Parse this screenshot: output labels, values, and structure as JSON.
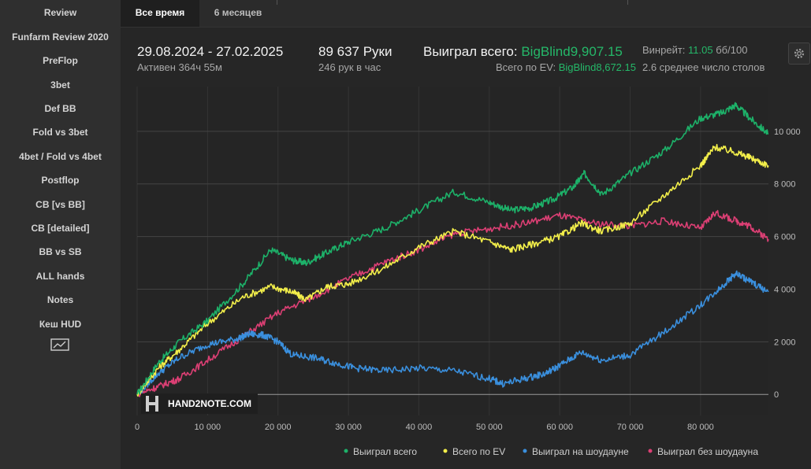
{
  "sidebar": {
    "items": [
      {
        "label": "Review"
      },
      {
        "label": "Funfarm Review 2020"
      },
      {
        "label": "PreFlop"
      },
      {
        "label": "3bet"
      },
      {
        "label": "Def BB"
      },
      {
        "label": "Fold vs 3bet"
      },
      {
        "label": "4bet / Fold vs 4bet"
      },
      {
        "label": "Postflop"
      },
      {
        "label": "CB [vs BB]"
      },
      {
        "label": "CB [detailed]"
      },
      {
        "label": "BB vs SB"
      },
      {
        "label": "ALL hands"
      },
      {
        "label": "Notes"
      },
      {
        "label": "Кеш HUD"
      }
    ],
    "chart_icon": "chart-line-icon"
  },
  "tabs": [
    {
      "label": "Все время",
      "active": true
    },
    {
      "label": "6 месяцев",
      "active": false
    }
  ],
  "stats": {
    "date_range": "29.08.2024 - 27.02.2025",
    "active_time": "Активен 364ч 55м",
    "hands": "89 637 Руки",
    "hands_per_hour": "246 рук в час",
    "won_label": "Выиграл всего:",
    "won_value": "BigBlind9,907.15",
    "ev_label": "Всего по EV:",
    "ev_value": "BigBlind8,672.15",
    "winrate_label": "Винрейт:",
    "winrate_value": "11.05",
    "winrate_unit": "бб/100",
    "avg_tables": "2.6 среднее число столов"
  },
  "watermark": "HAND2NOTE.COM",
  "colors": {
    "won": "#1db169",
    "ev": "#f2ee4a",
    "showdown": "#3a8fdd",
    "non_showdown": "#dc3f74",
    "accent_green": "#25b869"
  },
  "chart_data": {
    "type": "line",
    "x_ticks": [
      "0",
      "10 000",
      "20 000",
      "30 000",
      "40 000",
      "50 000",
      "60 000",
      "70 000",
      "80 000"
    ],
    "y_ticks": [
      "0",
      "2 000",
      "4 000",
      "6 000",
      "8 000",
      "10 000"
    ],
    "xlim": [
      0,
      89637
    ],
    "ylim": [
      -800,
      11700
    ],
    "grid": true,
    "legend_position": "bottom-right",
    "series": [
      {
        "name": "Выиграл всего",
        "color": "#1db169",
        "x": [
          0,
          3000,
          6000,
          10000,
          15000,
          19000,
          22000,
          24000,
          27000,
          30000,
          35000,
          40000,
          45000,
          50000,
          53000,
          56000,
          59000,
          62000,
          63500,
          66000,
          70000,
          75000,
          80000,
          83000,
          85000,
          87000,
          89637
        ],
        "y": [
          0,
          1200,
          2000,
          2800,
          4200,
          5500,
          5100,
          5000,
          5400,
          5800,
          6300,
          7000,
          7700,
          7300,
          7000,
          7100,
          7400,
          7900,
          8400,
          7600,
          8400,
          9300,
          10500,
          10700,
          11000,
          10500,
          9900
        ]
      },
      {
        "name": "Всего по EV",
        "color": "#f2ee4a",
        "x": [
          0,
          3000,
          6000,
          10000,
          15000,
          19000,
          22000,
          24000,
          27000,
          30000,
          35000,
          40000,
          45000,
          50000,
          53000,
          56000,
          60000,
          63000,
          66000,
          70000,
          75000,
          80000,
          82000,
          85000,
          87000,
          89637
        ],
        "y": [
          0,
          1000,
          1700,
          2700,
          3700,
          4100,
          3900,
          3600,
          4100,
          4200,
          4800,
          5600,
          6200,
          5800,
          5500,
          5700,
          6000,
          6500,
          6200,
          6500,
          7600,
          8700,
          9400,
          9200,
          9000,
          8700
        ]
      },
      {
        "name": "Выиграл на шоудауне",
        "color": "#3a8fdd",
        "x": [
          0,
          3000,
          6000,
          10000,
          14000,
          16000,
          18000,
          20000,
          22000,
          25000,
          28000,
          31000,
          35000,
          40000,
          45000,
          50000,
          52000,
          55000,
          58000,
          60000,
          63000,
          66000,
          70000,
          75000,
          80000,
          83000,
          85000,
          87000,
          89637
        ],
        "y": [
          0,
          800,
          1400,
          1900,
          2100,
          2300,
          2250,
          2000,
          1500,
          1400,
          1200,
          1000,
          900,
          1000,
          900,
          600,
          400,
          600,
          800,
          1100,
          1600,
          1300,
          1500,
          2400,
          3400,
          4100,
          4600,
          4300,
          3900
        ]
      },
      {
        "name": "Выиграл без шоудауна",
        "color": "#dc3f74",
        "x": [
          0,
          3000,
          6000,
          10000,
          15000,
          20000,
          25000,
          30000,
          35000,
          40000,
          45000,
          50000,
          55000,
          60000,
          65000,
          70000,
          75000,
          80000,
          82000,
          85000,
          87000,
          89637
        ],
        "y": [
          0,
          300,
          600,
          1300,
          2200,
          3100,
          3700,
          4400,
          5000,
          5500,
          6100,
          6300,
          6500,
          6800,
          6500,
          6400,
          6600,
          6300,
          6900,
          6600,
          6400,
          5900
        ]
      }
    ]
  }
}
